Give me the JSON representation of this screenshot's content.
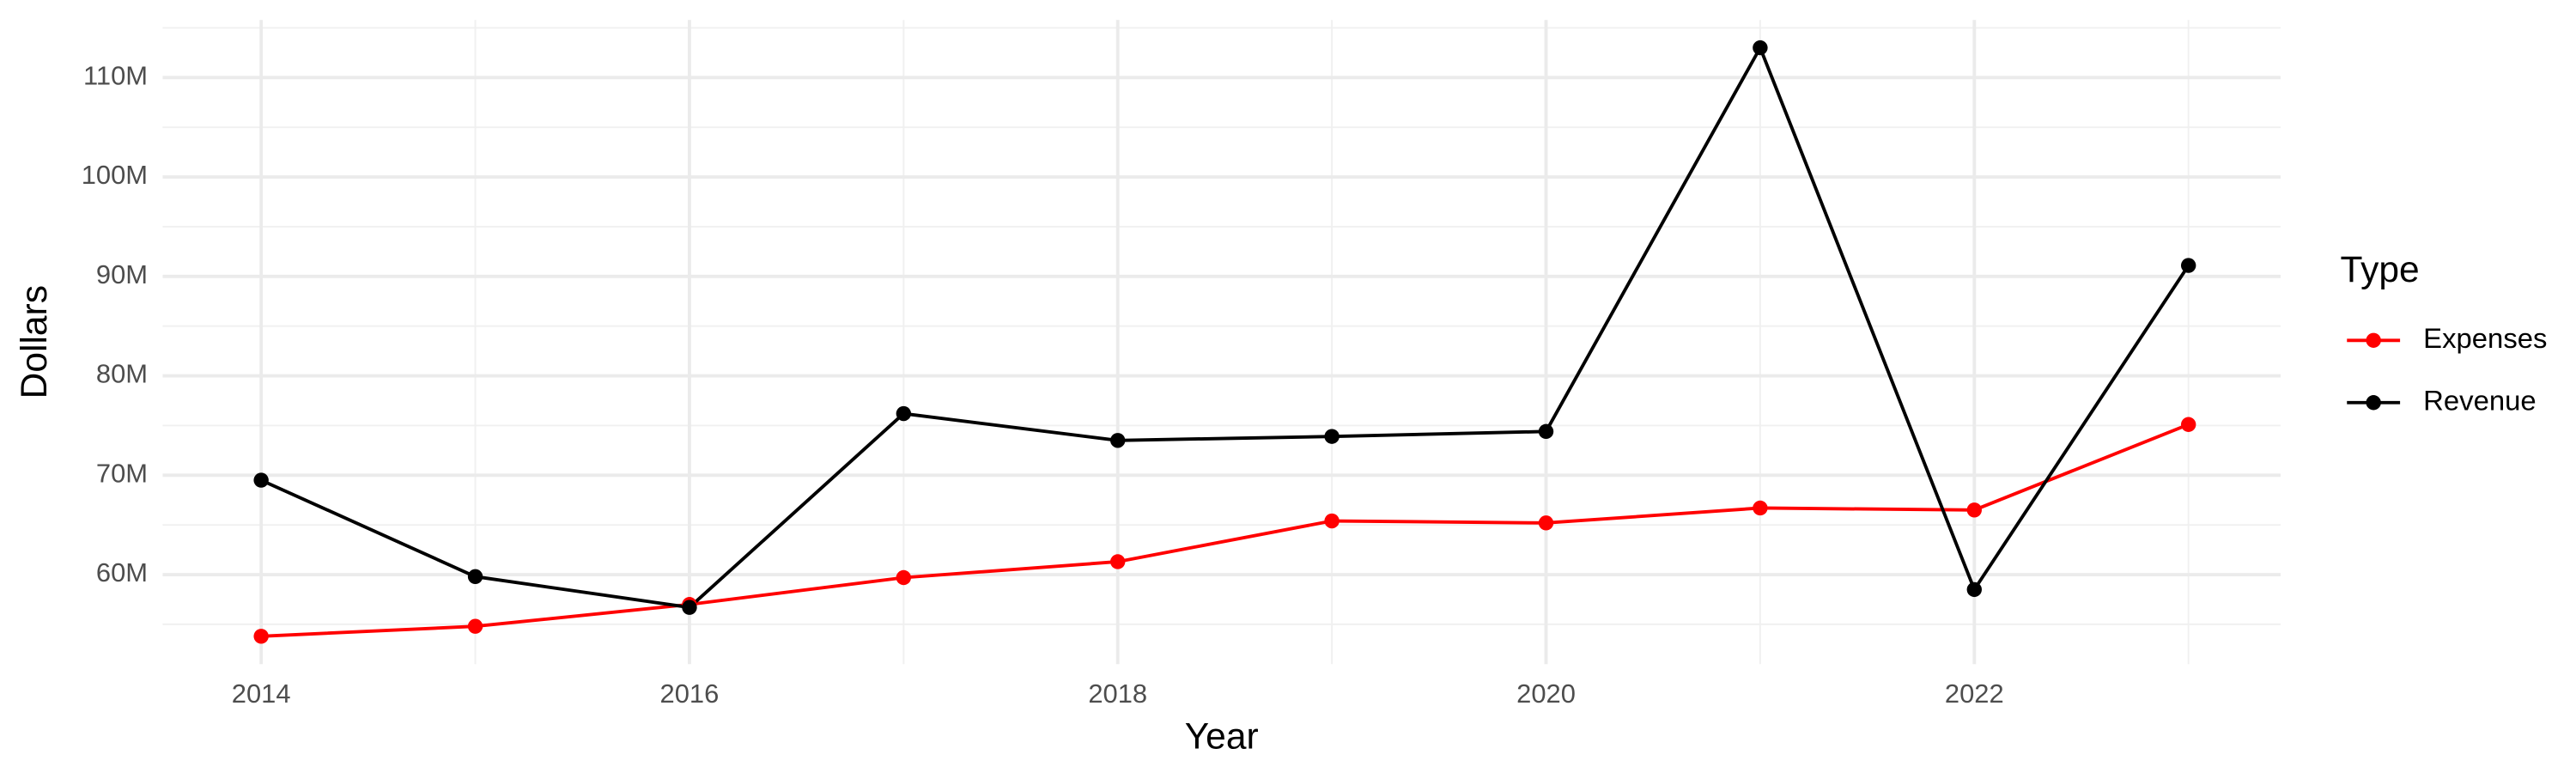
{
  "chart_data": {
    "type": "line",
    "x_label": "Year",
    "y_label": "Dollars",
    "legend_title": "Type",
    "legend_position": "right",
    "grid": true,
    "x": [
      2014,
      2015,
      2016,
      2017,
      2018,
      2019,
      2020,
      2021,
      2022,
      2023
    ],
    "xlim": [
      2013.54,
      2023.43
    ],
    "xticks": [
      2014,
      2016,
      2018,
      2020,
      2022
    ],
    "ylim": [
      51000000,
      115800000
    ],
    "yticks": [
      {
        "value": 60000000,
        "label": "60M"
      },
      {
        "value": 70000000,
        "label": "70M"
      },
      {
        "value": 80000000,
        "label": "80M"
      },
      {
        "value": 90000000,
        "label": "90M"
      },
      {
        "value": 100000000,
        "label": "100M"
      },
      {
        "value": 110000000,
        "label": "110M"
      }
    ],
    "series": [
      {
        "name": "Expenses",
        "color": "#ff0000",
        "values": [
          53800000,
          54800000,
          57000000,
          59700000,
          61300000,
          65400000,
          65200000,
          66700000,
          66500000,
          75100000
        ]
      },
      {
        "name": "Revenue",
        "color": "#000000",
        "values": [
          69500000,
          59800000,
          56700000,
          76200000,
          73500000,
          73900000,
          74400000,
          113000000,
          58500000,
          91100000
        ]
      }
    ]
  }
}
